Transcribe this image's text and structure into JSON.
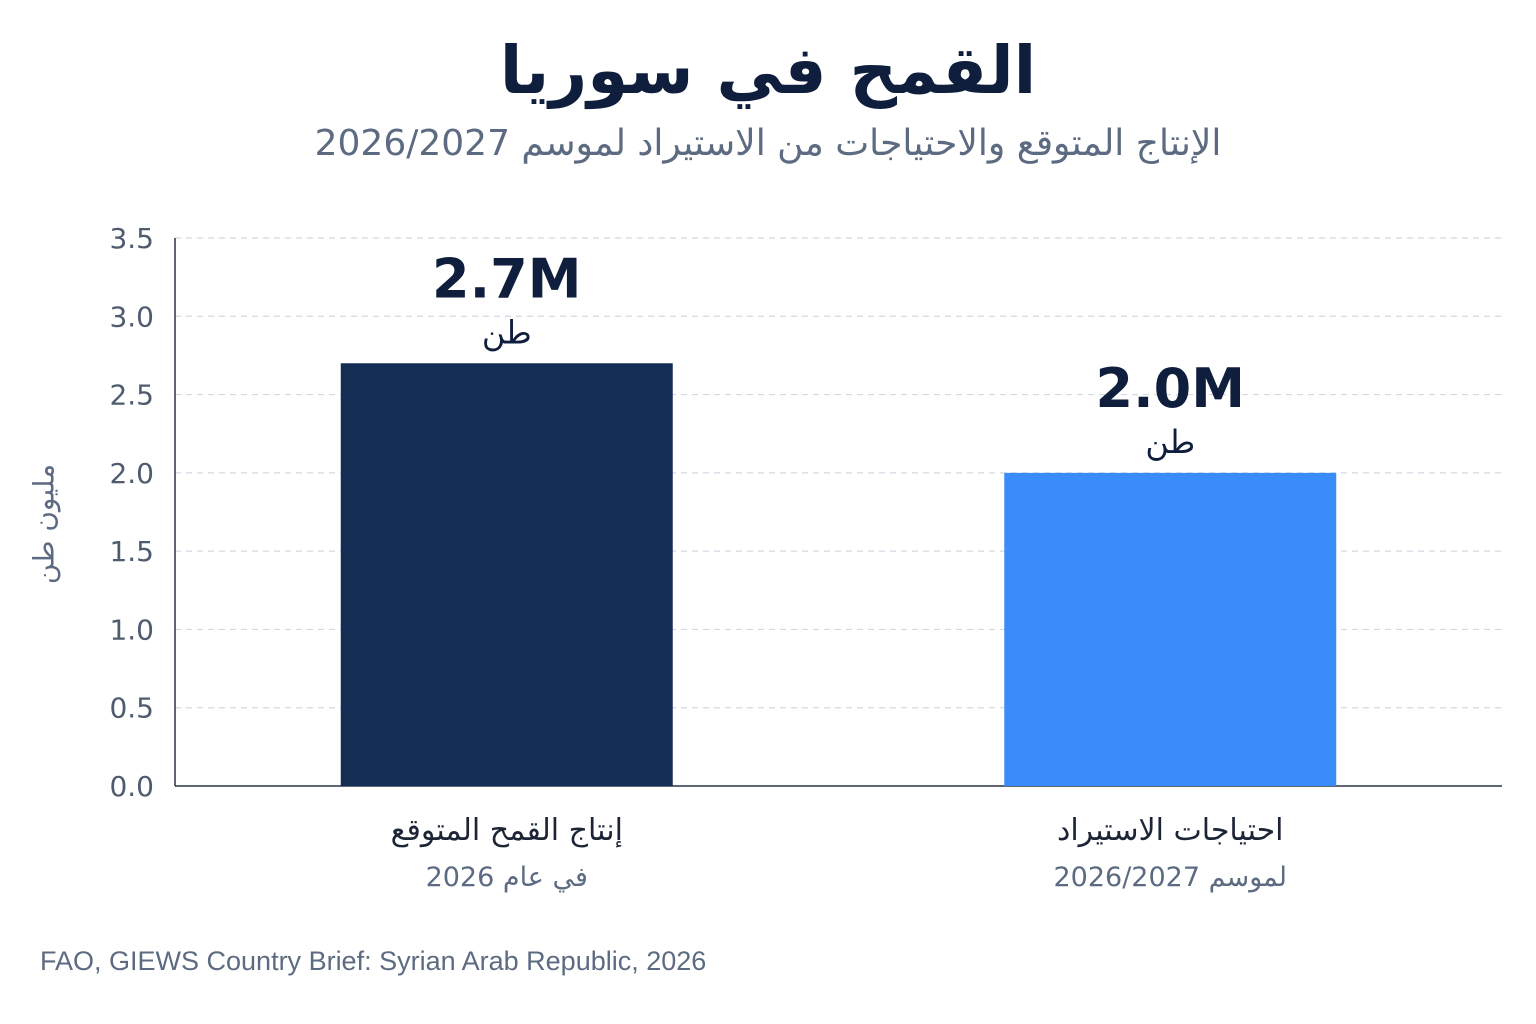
{
  "title": "القمح في سوريا",
  "subtitle": "الإنتاج المتوقع والاحتياجات من الاستيراد لموسم 2026/2027",
  "source": "FAO, GIEWS Country Brief: Syrian Arab Republic, 2026",
  "chart_data": {
    "type": "bar",
    "title": "القمح في سوريا",
    "subtitle": "الإنتاج المتوقع والاحتياجات من الاستيراد لموسم 2026/2027",
    "ylabel": "مليون طن",
    "xlabel": "",
    "ylim": [
      0,
      3.5
    ],
    "yticks": [
      "0.0",
      "0.5",
      "1.0",
      "1.5",
      "2.0",
      "2.5",
      "3.0",
      "3.5"
    ],
    "grid": true,
    "categories": [
      "إنتاج القمح المتوقع",
      "احتياجات الاستيراد"
    ],
    "category_sublabels": [
      "في عام 2026",
      "لموسم 2026/2027"
    ],
    "values": [
      2.7,
      2.0
    ],
    "value_labels": [
      "2.7M",
      "2.0M"
    ],
    "value_unit": "طن",
    "colors": [
      "#142d55",
      "#3a8cfb"
    ]
  }
}
